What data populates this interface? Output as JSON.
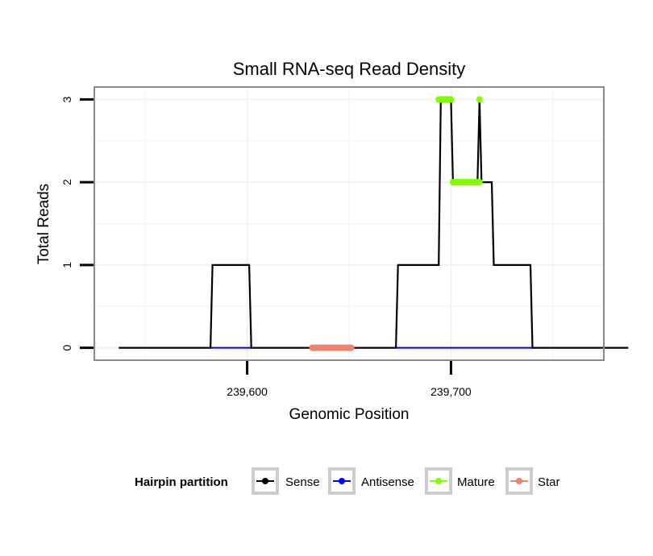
{
  "chart_data": {
    "type": "line",
    "title": "Small RNA-seq Read Density",
    "xlabel": "Genomic Position",
    "ylabel": "Total Reads",
    "xlim": [
      239525,
      239775
    ],
    "ylim": [
      -0.15,
      3.15
    ],
    "x_ticks": [
      239600,
      239700
    ],
    "x_tick_labels": [
      "239,600",
      "239,700"
    ],
    "y_ticks": [
      0,
      1,
      2,
      3
    ],
    "y_tick_labels": [
      "0",
      "1",
      "2",
      "3"
    ],
    "grid": true,
    "legend": {
      "position": "bottom",
      "title": "Hairpin partition",
      "entries": [
        "Sense",
        "Antisense",
        "Mature",
        "Star"
      ]
    },
    "series": [
      {
        "name": "Sense",
        "color": "#000000",
        "type": "line",
        "points": [
          [
            239537,
            0
          ],
          [
            239582,
            0
          ],
          [
            239583,
            1
          ],
          [
            239601,
            1
          ],
          [
            239602,
            0
          ],
          [
            239673,
            0
          ],
          [
            239674,
            1
          ],
          [
            239694,
            1
          ],
          [
            239695,
            3
          ],
          [
            239700,
            3
          ],
          [
            239701,
            2
          ],
          [
            239713,
            2
          ],
          [
            239714,
            3
          ],
          [
            239715,
            2
          ],
          [
            239720,
            2
          ],
          [
            239721,
            1
          ],
          [
            239739,
            1
          ],
          [
            239740,
            0
          ],
          [
            239787,
            0
          ]
        ]
      },
      {
        "name": "Antisense",
        "color": "#0000FF",
        "type": "segments",
        "segments": [
          [
            239582,
            239602,
            0
          ],
          [
            239673,
            239740,
            0
          ]
        ]
      },
      {
        "name": "Mature",
        "color": "#7FFF00",
        "type": "segments",
        "segments": [
          [
            239694,
            239700,
            3
          ],
          [
            239701,
            239714,
            2
          ],
          [
            239714,
            239714,
            3
          ]
        ]
      },
      {
        "name": "Star",
        "color": "#F08070",
        "type": "segments",
        "segments": [
          [
            239632,
            239651,
            0
          ]
        ]
      }
    ]
  }
}
